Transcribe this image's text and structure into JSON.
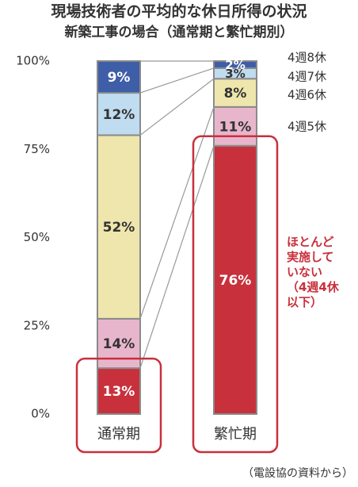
{
  "chart_data": {
    "type": "stacked-bar",
    "title": "現場技術者の平均的な休日所得の状況",
    "subtitle": "新築工事の場合（通常期と繁忙期別）",
    "source": "（電設協の資料から）",
    "categories": [
      "通常期",
      "繁忙期"
    ],
    "series": [
      {
        "name": "ほとんど\n実施して\nいない\n（4週4休\n以下）",
        "color": "#c8303c",
        "values": [
          13,
          76
        ],
        "value_labels": [
          "13%",
          "76%"
        ]
      },
      {
        "name": "4週5休",
        "color": "#e8b6cc",
        "values": [
          14,
          11
        ],
        "value_labels": [
          "14%",
          "11%"
        ]
      },
      {
        "name": "4週6休",
        "color": "#efe6ad",
        "values": [
          52,
          8
        ],
        "value_labels": [
          "52%",
          "8%"
        ]
      },
      {
        "name": "4週7休",
        "color": "#bfdcf0",
        "values": [
          12,
          3
        ],
        "value_labels": [
          "12%",
          "3%"
        ]
      },
      {
        "name": "4週8休",
        "color": "#3f5ea8",
        "values": [
          9,
          2
        ],
        "value_labels": [
          "9%",
          "2%"
        ]
      }
    ],
    "ylim": [
      0,
      100
    ],
    "yticks": [
      {
        "value": 0,
        "label": "0%"
      },
      {
        "value": 25,
        "label": "25%"
      },
      {
        "value": 50,
        "label": "50%"
      },
      {
        "value": 75,
        "label": "75%"
      },
      {
        "value": 100,
        "label": "100%"
      }
    ],
    "grid": false
  }
}
